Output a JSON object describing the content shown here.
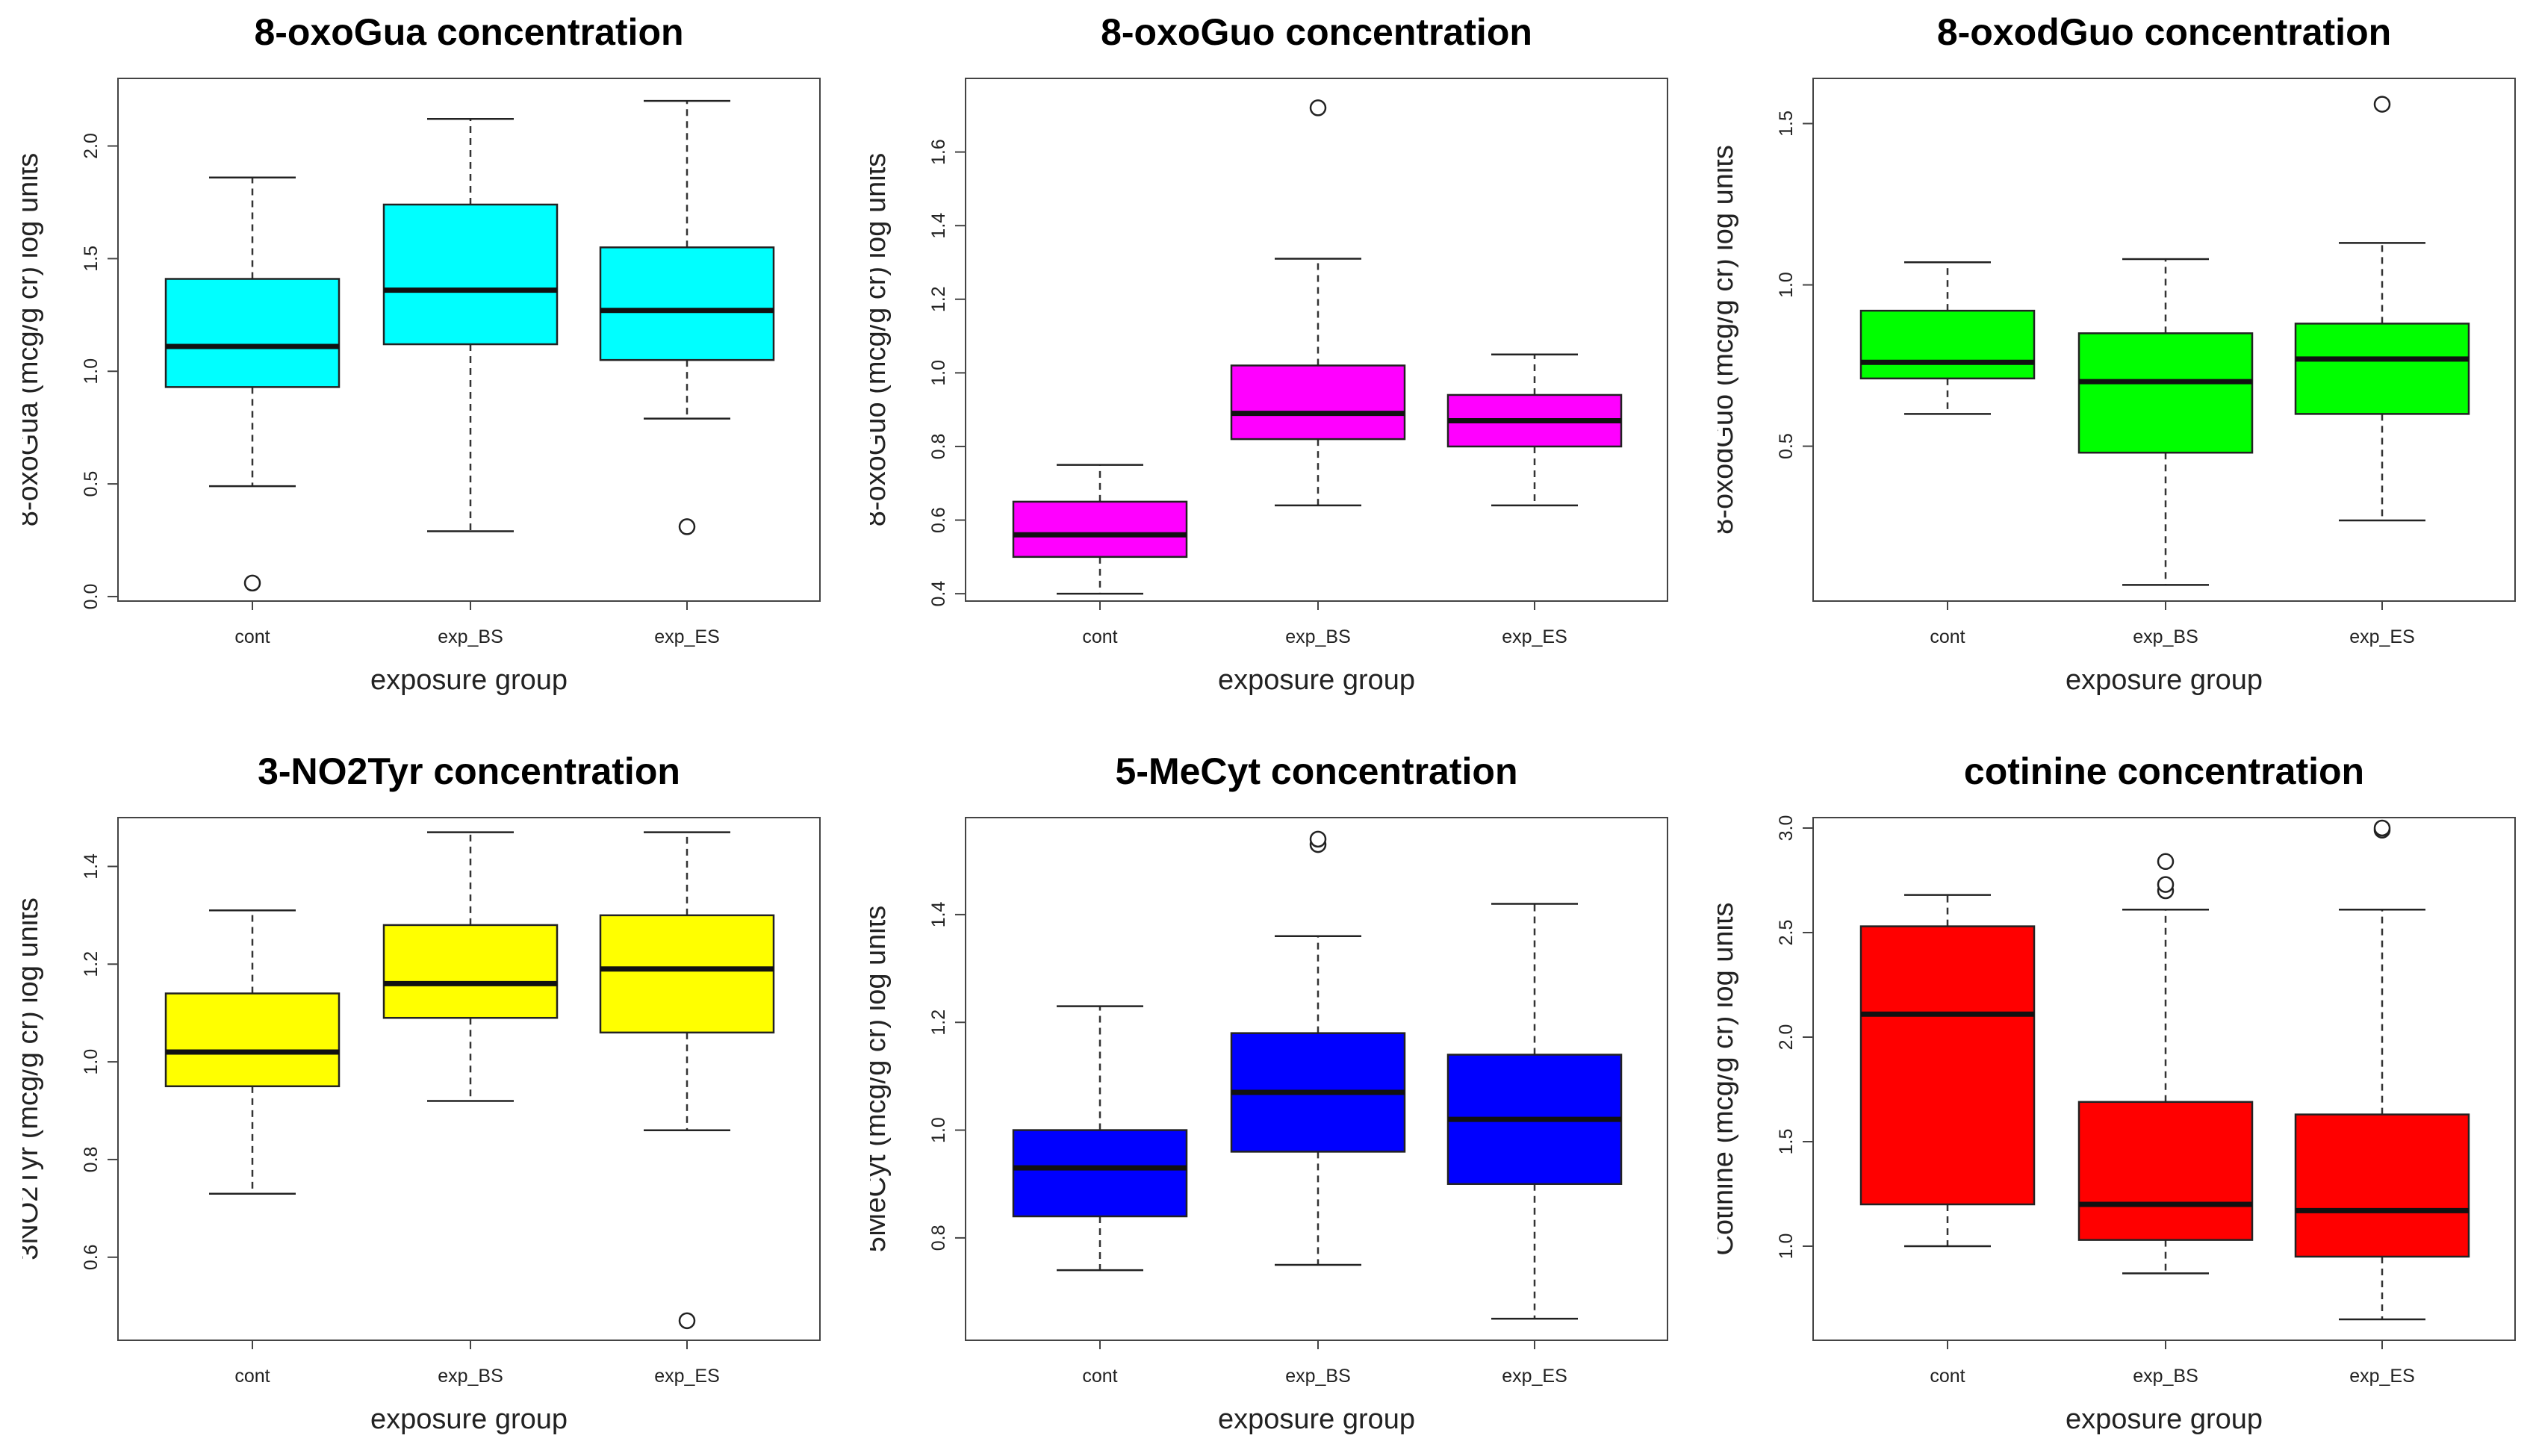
{
  "chart_data": [
    {
      "type": "boxplot",
      "title": "8-oxoGua concentration",
      "xlabel": "exposure group",
      "ylabel": "8-oxoGua (mcg/g cr) log units",
      "ylim": [
        -0.02,
        2.3
      ],
      "yticks": [
        "0.0",
        "0.5",
        "1.0",
        "1.5",
        "2.0"
      ],
      "color": "#00FFFF",
      "categories": [
        "cont",
        "exp_BS",
        "exp_ES"
      ],
      "boxes": [
        {
          "group": "cont",
          "whisker_low": 0.49,
          "q1": 0.93,
          "median": 1.11,
          "q3": 1.41,
          "whisker_high": 1.86,
          "outliers": [
            0.06
          ]
        },
        {
          "group": "exp_BS",
          "whisker_low": 0.29,
          "q1": 1.12,
          "median": 1.36,
          "q3": 1.74,
          "whisker_high": 2.12,
          "outliers": []
        },
        {
          "group": "exp_ES",
          "whisker_low": 0.79,
          "q1": 1.05,
          "median": 1.27,
          "q3": 1.55,
          "whisker_high": 2.2,
          "outliers": [
            0.31
          ]
        }
      ]
    },
    {
      "type": "boxplot",
      "title": "8-oxoGuo concentration",
      "xlabel": "exposure group",
      "ylabel": "8-oxoGuo (mcg/g cr) log units",
      "ylim": [
        0.38,
        1.8
      ],
      "yticks": [
        "0.4",
        "0.6",
        "0.8",
        "1.0",
        "1.2",
        "1.4",
        "1.6"
      ],
      "color": "#FF00FF",
      "categories": [
        "cont",
        "exp_BS",
        "exp_ES"
      ],
      "boxes": [
        {
          "group": "cont",
          "whisker_low": 0.4,
          "q1": 0.5,
          "median": 0.56,
          "q3": 0.65,
          "whisker_high": 0.75,
          "outliers": []
        },
        {
          "group": "exp_BS",
          "whisker_low": 0.64,
          "q1": 0.82,
          "median": 0.89,
          "q3": 1.02,
          "whisker_high": 1.31,
          "outliers": [
            1.72
          ]
        },
        {
          "group": "exp_ES",
          "whisker_low": 0.64,
          "q1": 0.8,
          "median": 0.87,
          "q3": 0.94,
          "whisker_high": 1.05,
          "outliers": []
        }
      ]
    },
    {
      "type": "boxplot",
      "title": "8-oxodGuo concentration",
      "xlabel": "exposure group",
      "ylabel": "8-oxodGuo (mcg/g cr) log units",
      "ylim": [
        0.02,
        1.64
      ],
      "yticks": [
        "0.5",
        "1.0",
        "1.5"
      ],
      "color": "#00FF00",
      "categories": [
        "cont",
        "exp_BS",
        "exp_ES"
      ],
      "boxes": [
        {
          "group": "cont",
          "whisker_low": 0.6,
          "q1": 0.71,
          "median": 0.76,
          "q3": 0.92,
          "whisker_high": 1.07,
          "outliers": []
        },
        {
          "group": "exp_BS",
          "whisker_low": 0.07,
          "q1": 0.48,
          "median": 0.7,
          "q3": 0.85,
          "whisker_high": 1.08,
          "outliers": []
        },
        {
          "group": "exp_ES",
          "whisker_low": 0.27,
          "q1": 0.6,
          "median": 0.77,
          "q3": 0.88,
          "whisker_high": 1.13,
          "outliers": [
            1.56
          ]
        }
      ]
    },
    {
      "type": "boxplot",
      "title": "3-NO2Tyr concentration",
      "xlabel": "exposure group",
      "ylabel": "3NO2Tyr (mcg/g cr) log units",
      "ylim": [
        0.43,
        1.5
      ],
      "yticks": [
        "0.6",
        "0.8",
        "1.0",
        "1.2",
        "1.4"
      ],
      "color": "#FFFF00",
      "categories": [
        "cont",
        "exp_BS",
        "exp_ES"
      ],
      "boxes": [
        {
          "group": "cont",
          "whisker_low": 0.73,
          "q1": 0.95,
          "median": 1.02,
          "q3": 1.14,
          "whisker_high": 1.31,
          "outliers": []
        },
        {
          "group": "exp_BS",
          "whisker_low": 0.92,
          "q1": 1.09,
          "median": 1.16,
          "q3": 1.28,
          "whisker_high": 1.47,
          "outliers": []
        },
        {
          "group": "exp_ES",
          "whisker_low": 0.86,
          "q1": 1.06,
          "median": 1.19,
          "q3": 1.3,
          "whisker_high": 1.47,
          "outliers": [
            0.47
          ]
        }
      ]
    },
    {
      "type": "boxplot",
      "title": "5-MeCyt concentration",
      "xlabel": "exposure group",
      "ylabel": "5MeCyt (mcg/g cr) log units",
      "ylim": [
        0.61,
        1.58
      ],
      "yticks": [
        "0.8",
        "1.0",
        "1.2",
        "1.4"
      ],
      "color": "#0000FF",
      "categories": [
        "cont",
        "exp_BS",
        "exp_ES"
      ],
      "boxes": [
        {
          "group": "cont",
          "whisker_low": 0.74,
          "q1": 0.84,
          "median": 0.93,
          "q3": 1.0,
          "whisker_high": 1.23,
          "outliers": []
        },
        {
          "group": "exp_BS",
          "whisker_low": 0.75,
          "q1": 0.96,
          "median": 1.07,
          "q3": 1.18,
          "whisker_high": 1.36,
          "outliers": [
            1.53,
            1.54
          ]
        },
        {
          "group": "exp_ES",
          "whisker_low": 0.65,
          "q1": 0.9,
          "median": 1.02,
          "q3": 1.14,
          "whisker_high": 1.42,
          "outliers": []
        }
      ]
    },
    {
      "type": "boxplot",
      "title": "cotinine concentration",
      "xlabel": "exposure group",
      "ylabel": "Cotinine (mcg/g cr) log units",
      "ylim": [
        0.55,
        3.05
      ],
      "yticks": [
        "1.0",
        "1.5",
        "2.0",
        "2.5",
        "3.0"
      ],
      "color": "#FF0000",
      "categories": [
        "cont",
        "exp_BS",
        "exp_ES"
      ],
      "boxes": [
        {
          "group": "cont",
          "whisker_low": 1.0,
          "q1": 1.2,
          "median": 2.11,
          "q3": 2.53,
          "whisker_high": 2.68,
          "outliers": []
        },
        {
          "group": "exp_BS",
          "whisker_low": 0.87,
          "q1": 1.03,
          "median": 1.2,
          "q3": 1.69,
          "whisker_high": 2.61,
          "outliers": [
            2.7,
            2.73,
            2.84
          ]
        },
        {
          "group": "exp_ES",
          "whisker_low": 0.65,
          "q1": 0.95,
          "median": 1.17,
          "q3": 1.63,
          "whisker_high": 2.61,
          "outliers": [
            2.99,
            3.0
          ]
        }
      ]
    }
  ]
}
